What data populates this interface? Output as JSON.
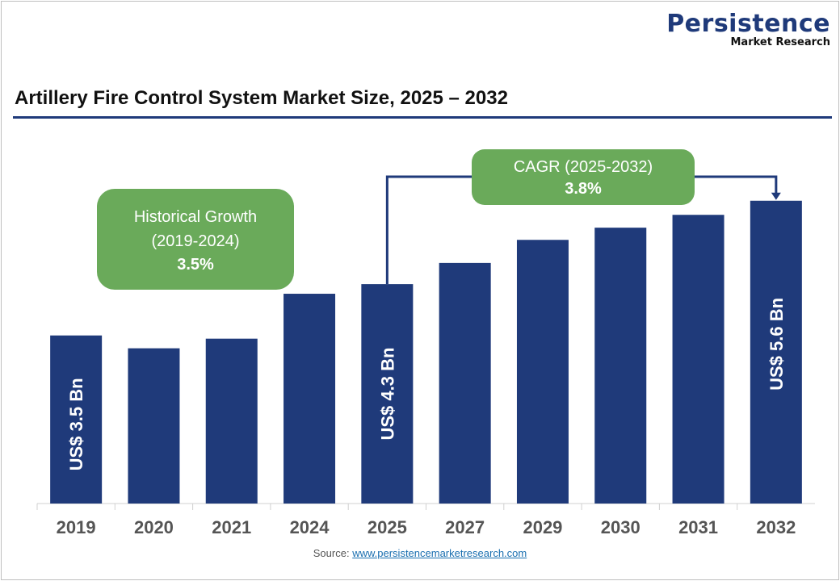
{
  "logo": {
    "line1": "Persistence",
    "line2": "Market Research"
  },
  "chart_data": {
    "type": "bar",
    "title": "Artillery Fire Control System Market Size, 2025 – 2032",
    "categories": [
      "2019",
      "2020",
      "2021",
      "2024",
      "2025",
      "2027",
      "2029",
      "2030",
      "2031",
      "2032"
    ],
    "values": [
      3.5,
      3.3,
      3.45,
      4.15,
      4.3,
      4.63,
      4.99,
      5.18,
      5.38,
      5.6
    ],
    "data_labels": {
      "2019": "US$ 3.5 Bn",
      "2025": "US$ 4.3 Bn",
      "2032": "US$ 5.6 Bn"
    },
    "bar_color": "#1f3a7a",
    "xlabel": "",
    "ylabel": "",
    "grid": false,
    "annotations": {
      "historical": {
        "line1": "Historical Growth",
        "line2": "(2019-2024)",
        "value": "3.5%"
      },
      "cagr": {
        "line1": "CAGR (2025-2032)",
        "value": "3.8%"
      }
    },
    "annotation_color": "#6aaa5a"
  },
  "source": {
    "label": "Source:",
    "link": "www.persistencemarketresearch.com"
  }
}
